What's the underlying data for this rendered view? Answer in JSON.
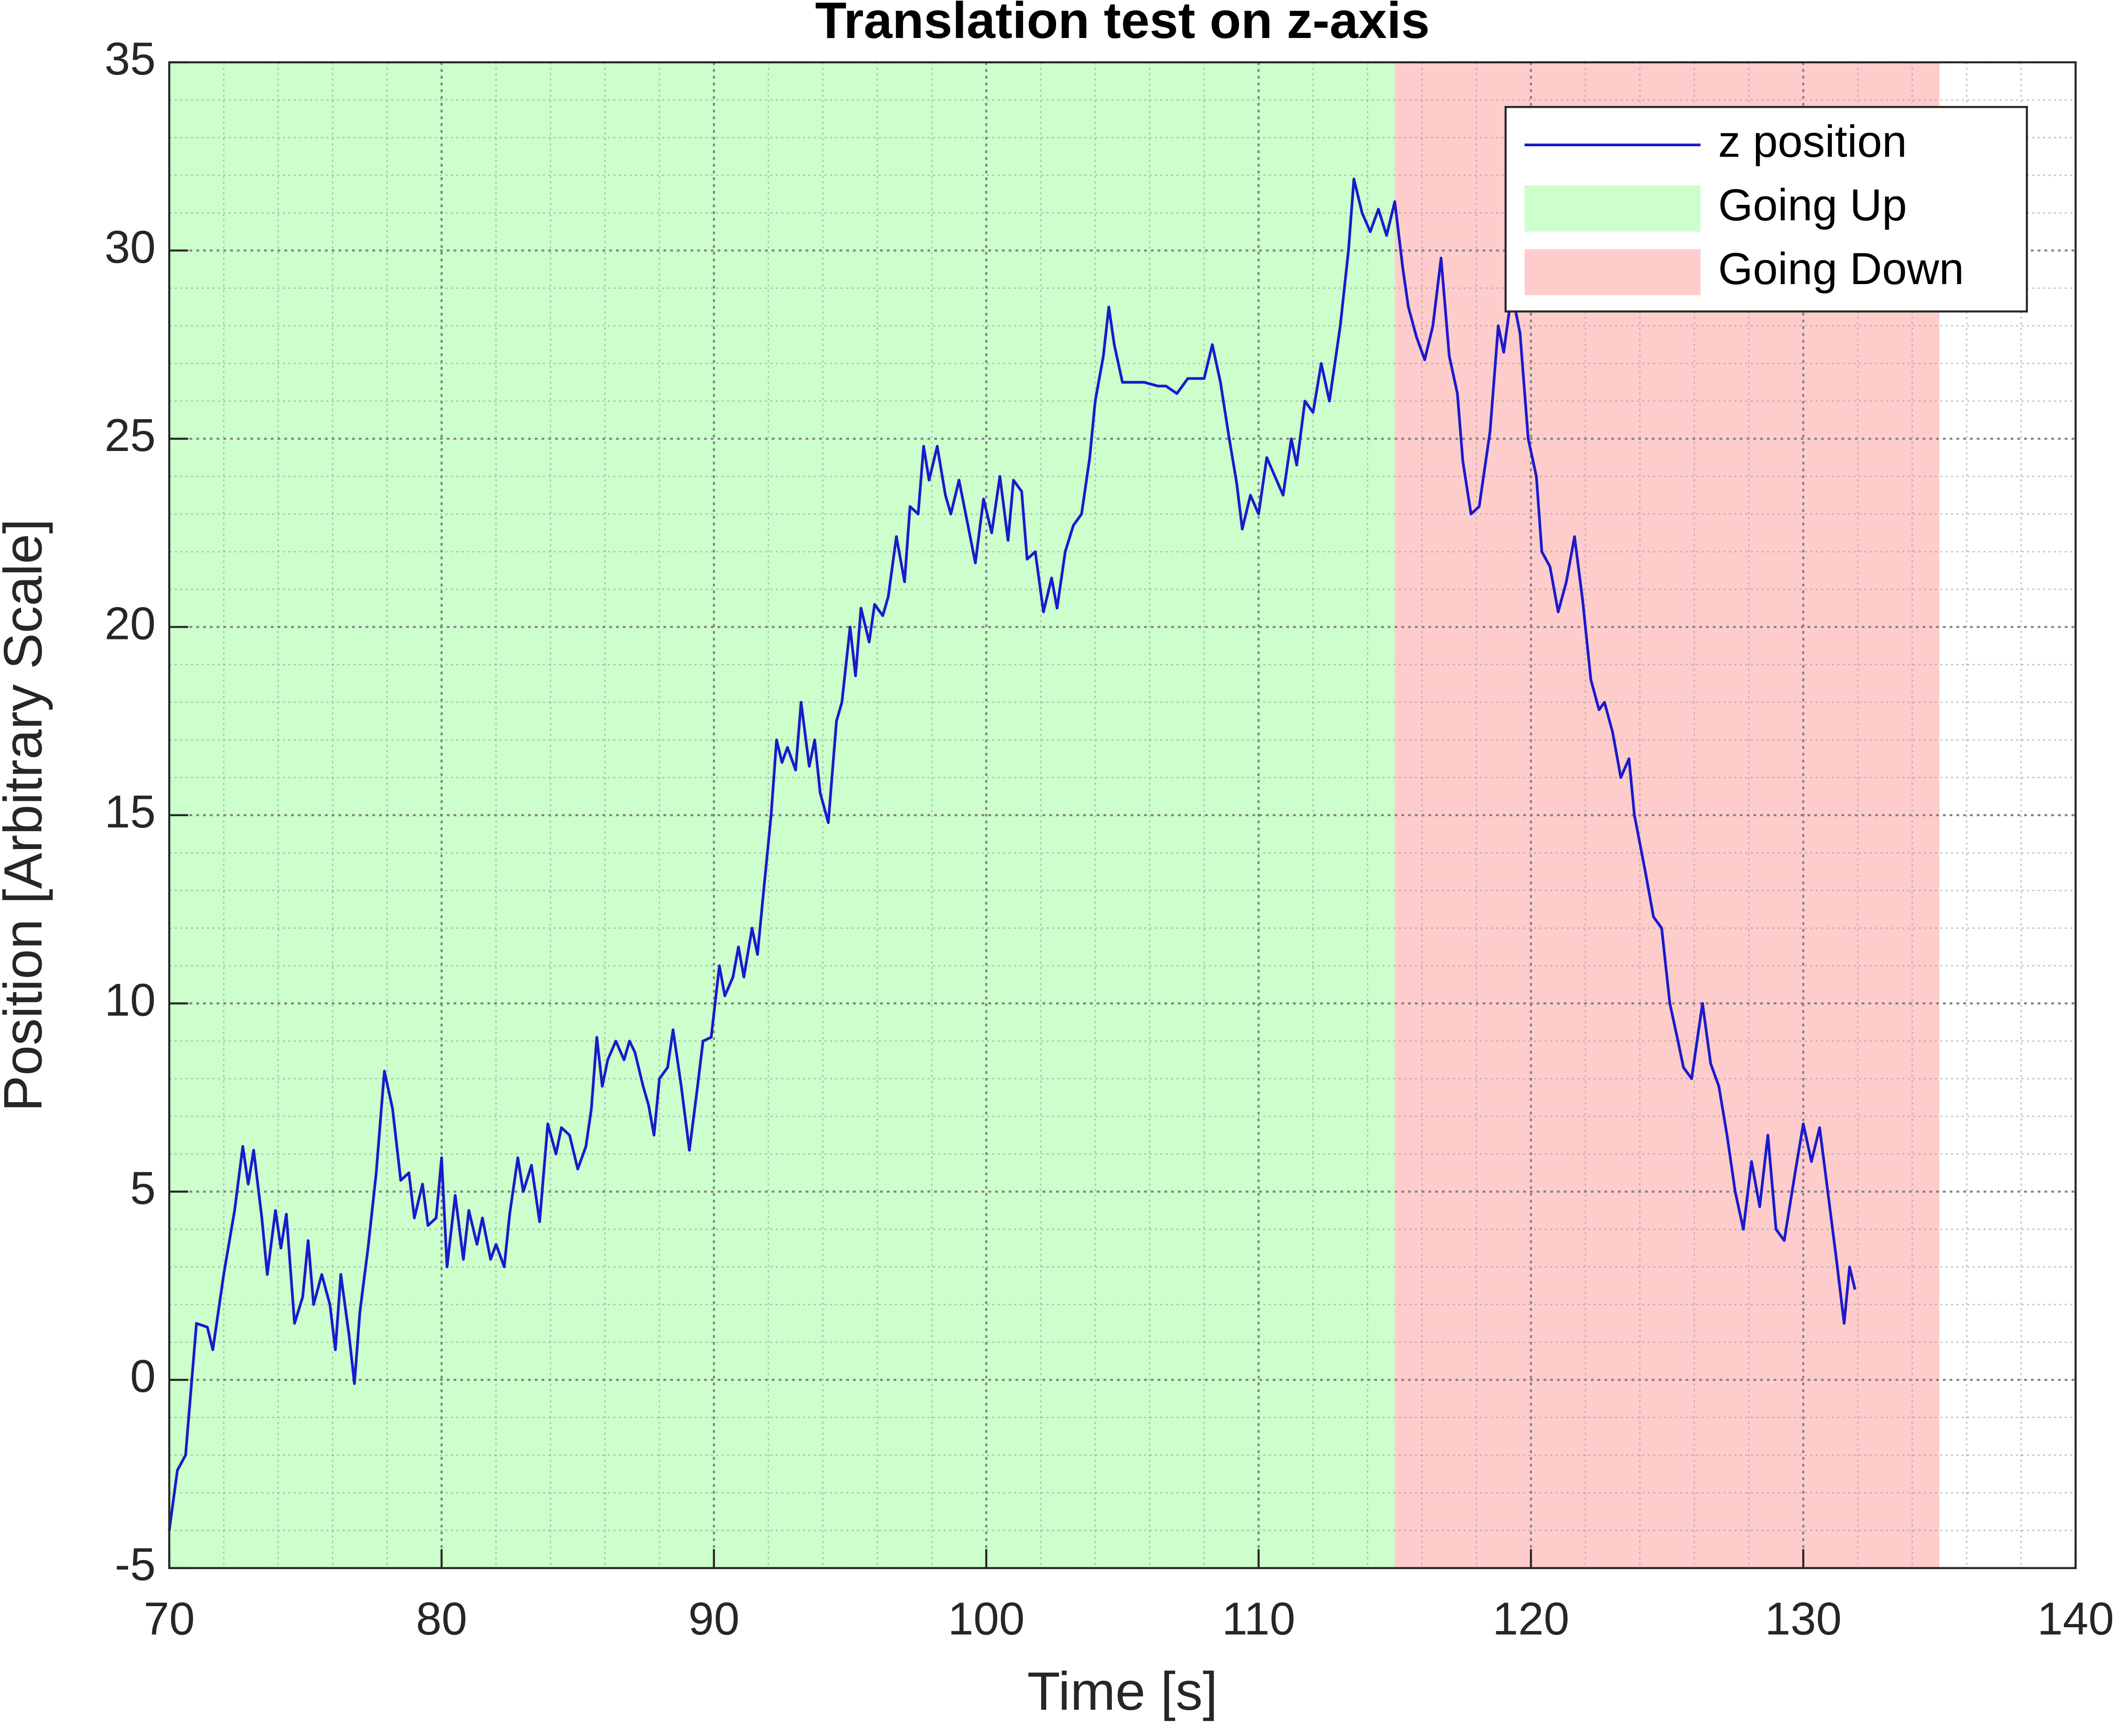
{
  "chart_data": {
    "type": "line",
    "title": "Translation test on z-axis",
    "x_label": "Time [s]",
    "y_label": "Position [Arbitrary Scale]",
    "xlim": [
      70,
      140
    ],
    "ylim": [
      -5,
      35
    ],
    "xticks": [
      70,
      80,
      90,
      100,
      110,
      120,
      130,
      140
    ],
    "yticks": [
      -5,
      0,
      5,
      10,
      15,
      20,
      25,
      30,
      35
    ],
    "grid": true,
    "minor_grid": true,
    "legend": "upper right",
    "regions": [
      {
        "name": "Going Up",
        "color": "#ccffcc",
        "xlim": [
          70,
          115
        ]
      },
      {
        "name": "Going Down",
        "color": "#ffcccc",
        "xlim": [
          115,
          135
        ]
      }
    ],
    "series": [
      {
        "name": "z position",
        "color": "#1a1acc",
        "x": [
          70.0,
          70.3,
          70.6,
          71.0,
          71.4,
          71.6,
          72.0,
          72.4,
          72.7,
          72.9,
          73.1,
          73.4,
          73.6,
          73.9,
          74.1,
          74.3,
          74.6,
          74.9,
          75.1,
          75.3,
          75.6,
          75.9,
          76.1,
          76.3,
          76.6,
          76.8,
          77.0,
          77.3,
          77.6,
          77.9,
          78.2,
          78.5,
          78.8,
          79.0,
          79.3,
          79.5,
          79.8,
          80.0,
          80.2,
          80.5,
          80.8,
          81.0,
          81.3,
          81.5,
          81.8,
          82.0,
          82.3,
          82.5,
          82.8,
          83.0,
          83.3,
          83.6,
          83.9,
          84.2,
          84.4,
          84.7,
          85.0,
          85.3,
          85.5,
          85.7,
          85.9,
          86.1,
          86.4,
          86.7,
          86.9,
          87.1,
          87.4,
          87.6,
          87.8,
          88.0,
          88.3,
          88.5,
          88.8,
          89.1,
          89.4,
          89.6,
          89.9,
          90.2,
          90.4,
          90.7,
          90.9,
          91.1,
          91.4,
          91.6,
          91.8,
          92.1,
          92.3,
          92.5,
          92.7,
          93.0,
          93.2,
          93.5,
          93.7,
          93.9,
          94.2,
          94.5,
          94.7,
          95.0,
          95.2,
          95.4,
          95.7,
          95.9,
          96.2,
          96.4,
          96.7,
          97.0,
          97.2,
          97.5,
          97.7,
          97.9,
          98.2,
          98.5,
          98.7,
          99.0,
          99.3,
          99.6,
          99.9,
          100.2,
          100.5,
          100.8,
          101.0,
          101.3,
          101.5,
          101.8,
          102.1,
          102.4,
          102.6,
          102.9,
          103.2,
          103.5,
          103.8,
          104.0,
          104.3,
          104.5,
          104.7,
          105.0,
          105.3,
          105.8,
          106.3,
          106.6,
          107.0,
          107.4,
          108.0,
          108.3,
          108.6,
          108.9,
          109.2,
          109.4,
          109.7,
          110.0,
          110.3,
          110.6,
          110.9,
          111.2,
          111.4,
          111.7,
          112.0,
          112.3,
          112.6,
          113.0,
          113.3,
          113.5,
          113.8,
          114.1,
          114.4,
          114.7,
          115.0,
          115.3,
          115.5,
          115.8,
          116.1,
          116.4,
          116.7,
          117.0,
          117.3,
          117.5,
          117.8,
          118.1,
          118.5,
          118.8,
          119.0,
          119.3,
          119.6,
          119.9,
          120.2,
          120.4,
          120.7,
          121.0,
          121.3,
          121.6,
          121.9,
          122.2,
          122.5,
          122.7,
          123.0,
          123.3,
          123.6,
          123.8,
          124.2,
          124.5,
          124.8,
          125.1,
          125.4,
          125.6,
          125.9,
          126.3,
          126.6,
          126.9,
          127.2,
          127.5,
          127.8,
          128.1,
          128.4,
          128.7,
          129.0,
          129.3,
          129.7,
          130.0,
          130.3,
          130.6,
          130.9,
          131.2,
          131.5,
          131.7,
          131.9
        ],
        "values": [
          -4.0,
          -2.4,
          -2.0,
          1.5,
          1.4,
          0.8,
          2.8,
          4.5,
          6.2,
          5.2,
          6.1,
          4.3,
          2.8,
          4.5,
          3.5,
          4.4,
          1.5,
          2.2,
          3.7,
          2.0,
          2.8,
          2.0,
          0.8,
          2.8,
          1.2,
          -0.1,
          1.8,
          3.5,
          5.5,
          8.2,
          7.2,
          5.3,
          5.5,
          4.3,
          5.2,
          4.1,
          4.3,
          5.9,
          3.0,
          4.9,
          3.2,
          4.5,
          3.6,
          4.3,
          3.2,
          3.6,
          3.0,
          4.4,
          5.9,
          5.0,
          5.7,
          4.2,
          6.8,
          6.0,
          6.7,
          6.5,
          5.6,
          6.2,
          7.2,
          9.1,
          7.8,
          8.5,
          9.0,
          8.5,
          9.0,
          8.7,
          7.8,
          7.3,
          6.5,
          8.0,
          8.3,
          9.3,
          7.8,
          6.1,
          7.8,
          9.0,
          9.1,
          11.0,
          10.2,
          10.7,
          11.5,
          10.7,
          12.0,
          11.3,
          12.8,
          15.0,
          17.0,
          16.4,
          16.8,
          16.2,
          18.0,
          16.3,
          17.0,
          15.6,
          14.8,
          17.5,
          18.0,
          20.0,
          18.7,
          20.5,
          19.6,
          20.6,
          20.3,
          20.8,
          22.4,
          21.2,
          23.2,
          23.0,
          24.8,
          23.9,
          24.8,
          23.5,
          23.0,
          23.9,
          22.8,
          21.7,
          23.4,
          22.5,
          24.0,
          22.3,
          23.9,
          23.6,
          21.8,
          22.0,
          20.4,
          21.3,
          20.5,
          22.0,
          22.7,
          23.0,
          24.5,
          26.0,
          27.2,
          28.5,
          27.5,
          26.5,
          26.5,
          26.5,
          26.4,
          26.4,
          26.2,
          26.6,
          26.6,
          27.5,
          26.5,
          25.1,
          23.8,
          22.6,
          23.5,
          23.0,
          24.5,
          24.0,
          23.5,
          25.0,
          24.3,
          26.0,
          25.7,
          27.0,
          26.0,
          28.0,
          30.0,
          31.9,
          31.0,
          30.5,
          31.1,
          30.4,
          31.3,
          29.5,
          28.5,
          27.7,
          27.1,
          28.0,
          29.8,
          27.2,
          26.2,
          24.4,
          23.0,
          23.2,
          25.2,
          28.0,
          27.3,
          28.9,
          27.8,
          25.0,
          24.0,
          22.0,
          21.6,
          20.4,
          21.2,
          22.4,
          20.7,
          18.6,
          17.8,
          18.0,
          17.2,
          16.0,
          16.5,
          15.0,
          13.5,
          12.3,
          12.0,
          10.0,
          9.0,
          8.3,
          8.0,
          10.0,
          8.4,
          7.8,
          6.5,
          5.0,
          4.0,
          5.8,
          4.6,
          6.5,
          4.0,
          3.7,
          5.5,
          6.8,
          5.8,
          6.7,
          5.0,
          3.3,
          1.5,
          3.0,
          2.4
        ]
      }
    ]
  }
}
